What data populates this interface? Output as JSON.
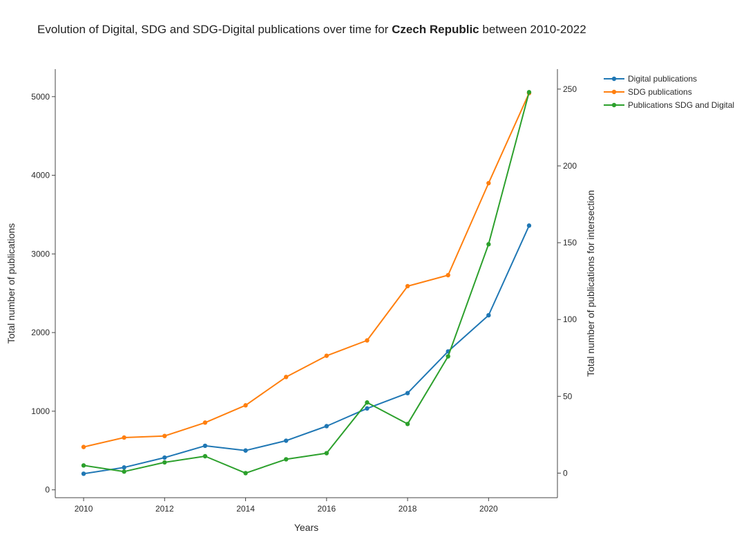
{
  "title": {
    "prefix": "Evolution of Digital, SDG and SDG-Digital publications over time for ",
    "country": "Czech Republic",
    "suffix": " between 2010-2022"
  },
  "chart_data": {
    "type": "line",
    "x": [
      2010,
      2011,
      2012,
      2013,
      2014,
      2015,
      2016,
      2017,
      2018,
      2019,
      2020,
      2021
    ],
    "xlabel": "Years",
    "ylabel_left": "Total number of publications",
    "ylabel_right": "Total number of publications for intersection",
    "xlim": [
      2009.3,
      2021.7
    ],
    "ylim_left": [
      -100,
      5350
    ],
    "ylim_right": [
      -16,
      263
    ],
    "x_ticks": [
      2010,
      2012,
      2014,
      2016,
      2018,
      2020
    ],
    "y_left_ticks": [
      0,
      1000,
      2000,
      3000,
      4000,
      5000
    ],
    "y_right_ticks": [
      0,
      50,
      100,
      150,
      200,
      250
    ],
    "grid": false,
    "legend_position": "top-right, outside plot",
    "series": [
      {
        "name": "Digital publications",
        "axis": "left",
        "color": "#1f77b4",
        "values": [
          205,
          285,
          410,
          560,
          500,
          625,
          810,
          1035,
          1230,
          1760,
          2220,
          3360
        ]
      },
      {
        "name": "SDG publications",
        "axis": "left",
        "color": "#ff7f0e",
        "values": [
          545,
          665,
          685,
          855,
          1075,
          1435,
          1705,
          1900,
          2590,
          2730,
          3900,
          5045
        ]
      },
      {
        "name": "Publications SDG and Digital",
        "axis": "right",
        "color": "#2ca02c",
        "values": [
          5,
          1,
          7,
          11,
          0,
          9,
          13,
          46,
          32,
          76,
          149,
          248
        ]
      }
    ]
  }
}
